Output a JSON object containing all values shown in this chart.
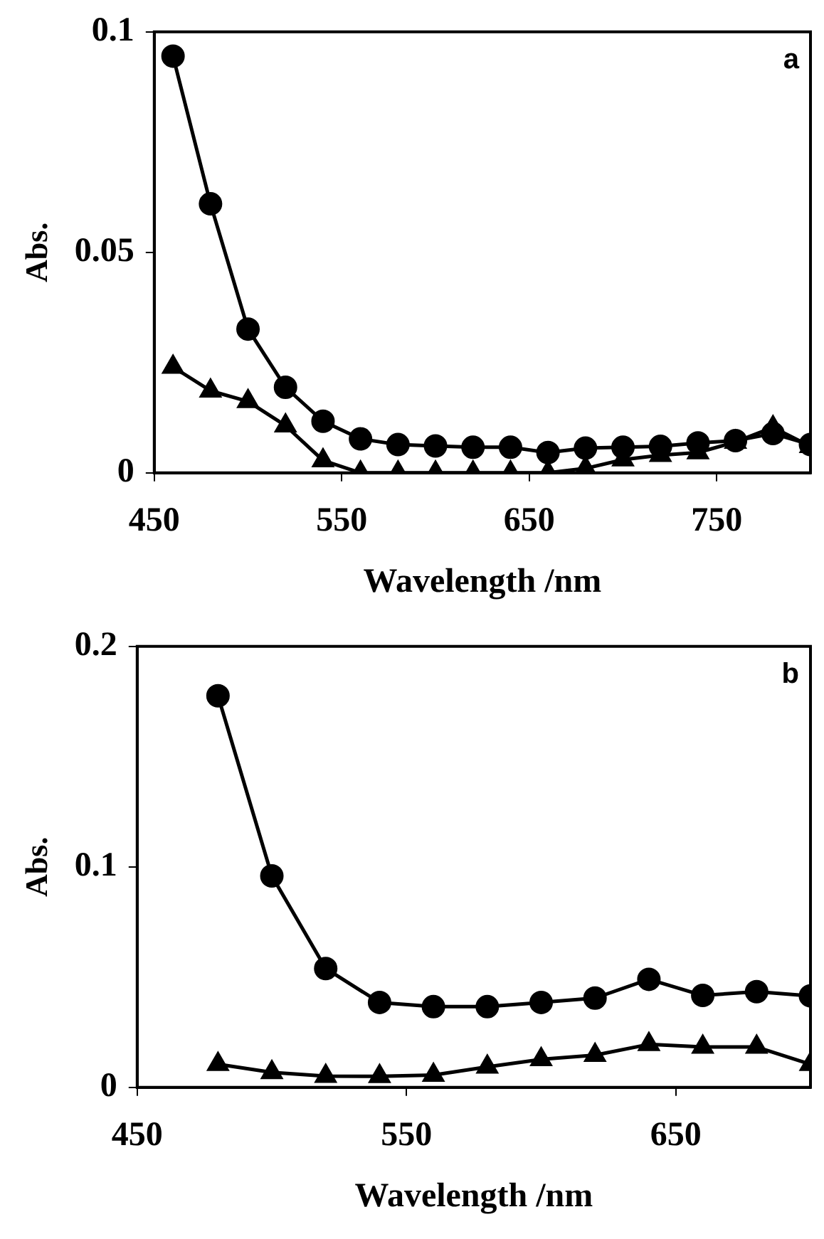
{
  "chart_data": [
    {
      "type": "line",
      "annotations": [
        "a"
      ],
      "xlabel": "Wavelength /nm",
      "ylabel": "Abs.",
      "xlim": [
        450,
        800
      ],
      "xticks": [
        450,
        550,
        650,
        750
      ],
      "ylim": [
        0,
        0.1
      ],
      "yticks": [
        0,
        0.05,
        0.1
      ],
      "legend": false,
      "line_style": "solid",
      "series": [
        {
          "color": "#000000",
          "marker": "circle",
          "x": [
            460,
            480,
            500,
            520,
            540,
            560,
            580,
            600,
            620,
            640,
            660,
            680,
            700,
            720,
            740,
            760,
            780,
            800
          ],
          "values": [
            0.0945,
            0.061,
            0.0326,
            0.0194,
            0.0117,
            0.0077,
            0.0064,
            0.0061,
            0.0058,
            0.0058,
            0.0046,
            0.0056,
            0.0058,
            0.006,
            0.0068,
            0.0073,
            0.0089,
            0.0064
          ]
        },
        {
          "color": "#000000",
          "marker": "triangle",
          "x": [
            460,
            480,
            500,
            520,
            540,
            560,
            580,
            600,
            620,
            640,
            660,
            680,
            700,
            720,
            740,
            760,
            780,
            800
          ],
          "values": [
            0.024,
            0.0186,
            0.0162,
            0.0107,
            0.0028,
            0,
            0,
            0,
            0,
            0,
            0,
            0.001,
            0.003,
            0.004,
            0.0046,
            0.007,
            0.0103,
            0.006
          ]
        }
      ]
    },
    {
      "type": "line",
      "annotations": [
        "b"
      ],
      "xlabel": "Wavelength /nm",
      "ylabel": "Abs.",
      "xlim": [
        450,
        700
      ],
      "xticks": [
        450,
        550,
        650
      ],
      "ylim": [
        0,
        0.2
      ],
      "yticks": [
        0,
        0.1,
        0.2
      ],
      "legend": false,
      "line_style": "solid",
      "series": [
        {
          "color": "#000000",
          "marker": "circle",
          "x": [
            480,
            500,
            520,
            540,
            560,
            580,
            600,
            620,
            640,
            660,
            680,
            700
          ],
          "values": [
            0.1776,
            0.0959,
            0.0539,
            0.0385,
            0.0366,
            0.0366,
            0.0385,
            0.0405,
            0.049,
            0.0417,
            0.0434,
            0.0415
          ]
        },
        {
          "color": "#000000",
          "marker": "triangle",
          "x": [
            480,
            500,
            520,
            540,
            560,
            580,
            600,
            620,
            640,
            660,
            680,
            700
          ],
          "values": [
            0.0105,
            0.0068,
            0.0051,
            0.005,
            0.0056,
            0.0093,
            0.0127,
            0.0146,
            0.0195,
            0.0183,
            0.0183,
            0.0105
          ]
        }
      ]
    }
  ]
}
